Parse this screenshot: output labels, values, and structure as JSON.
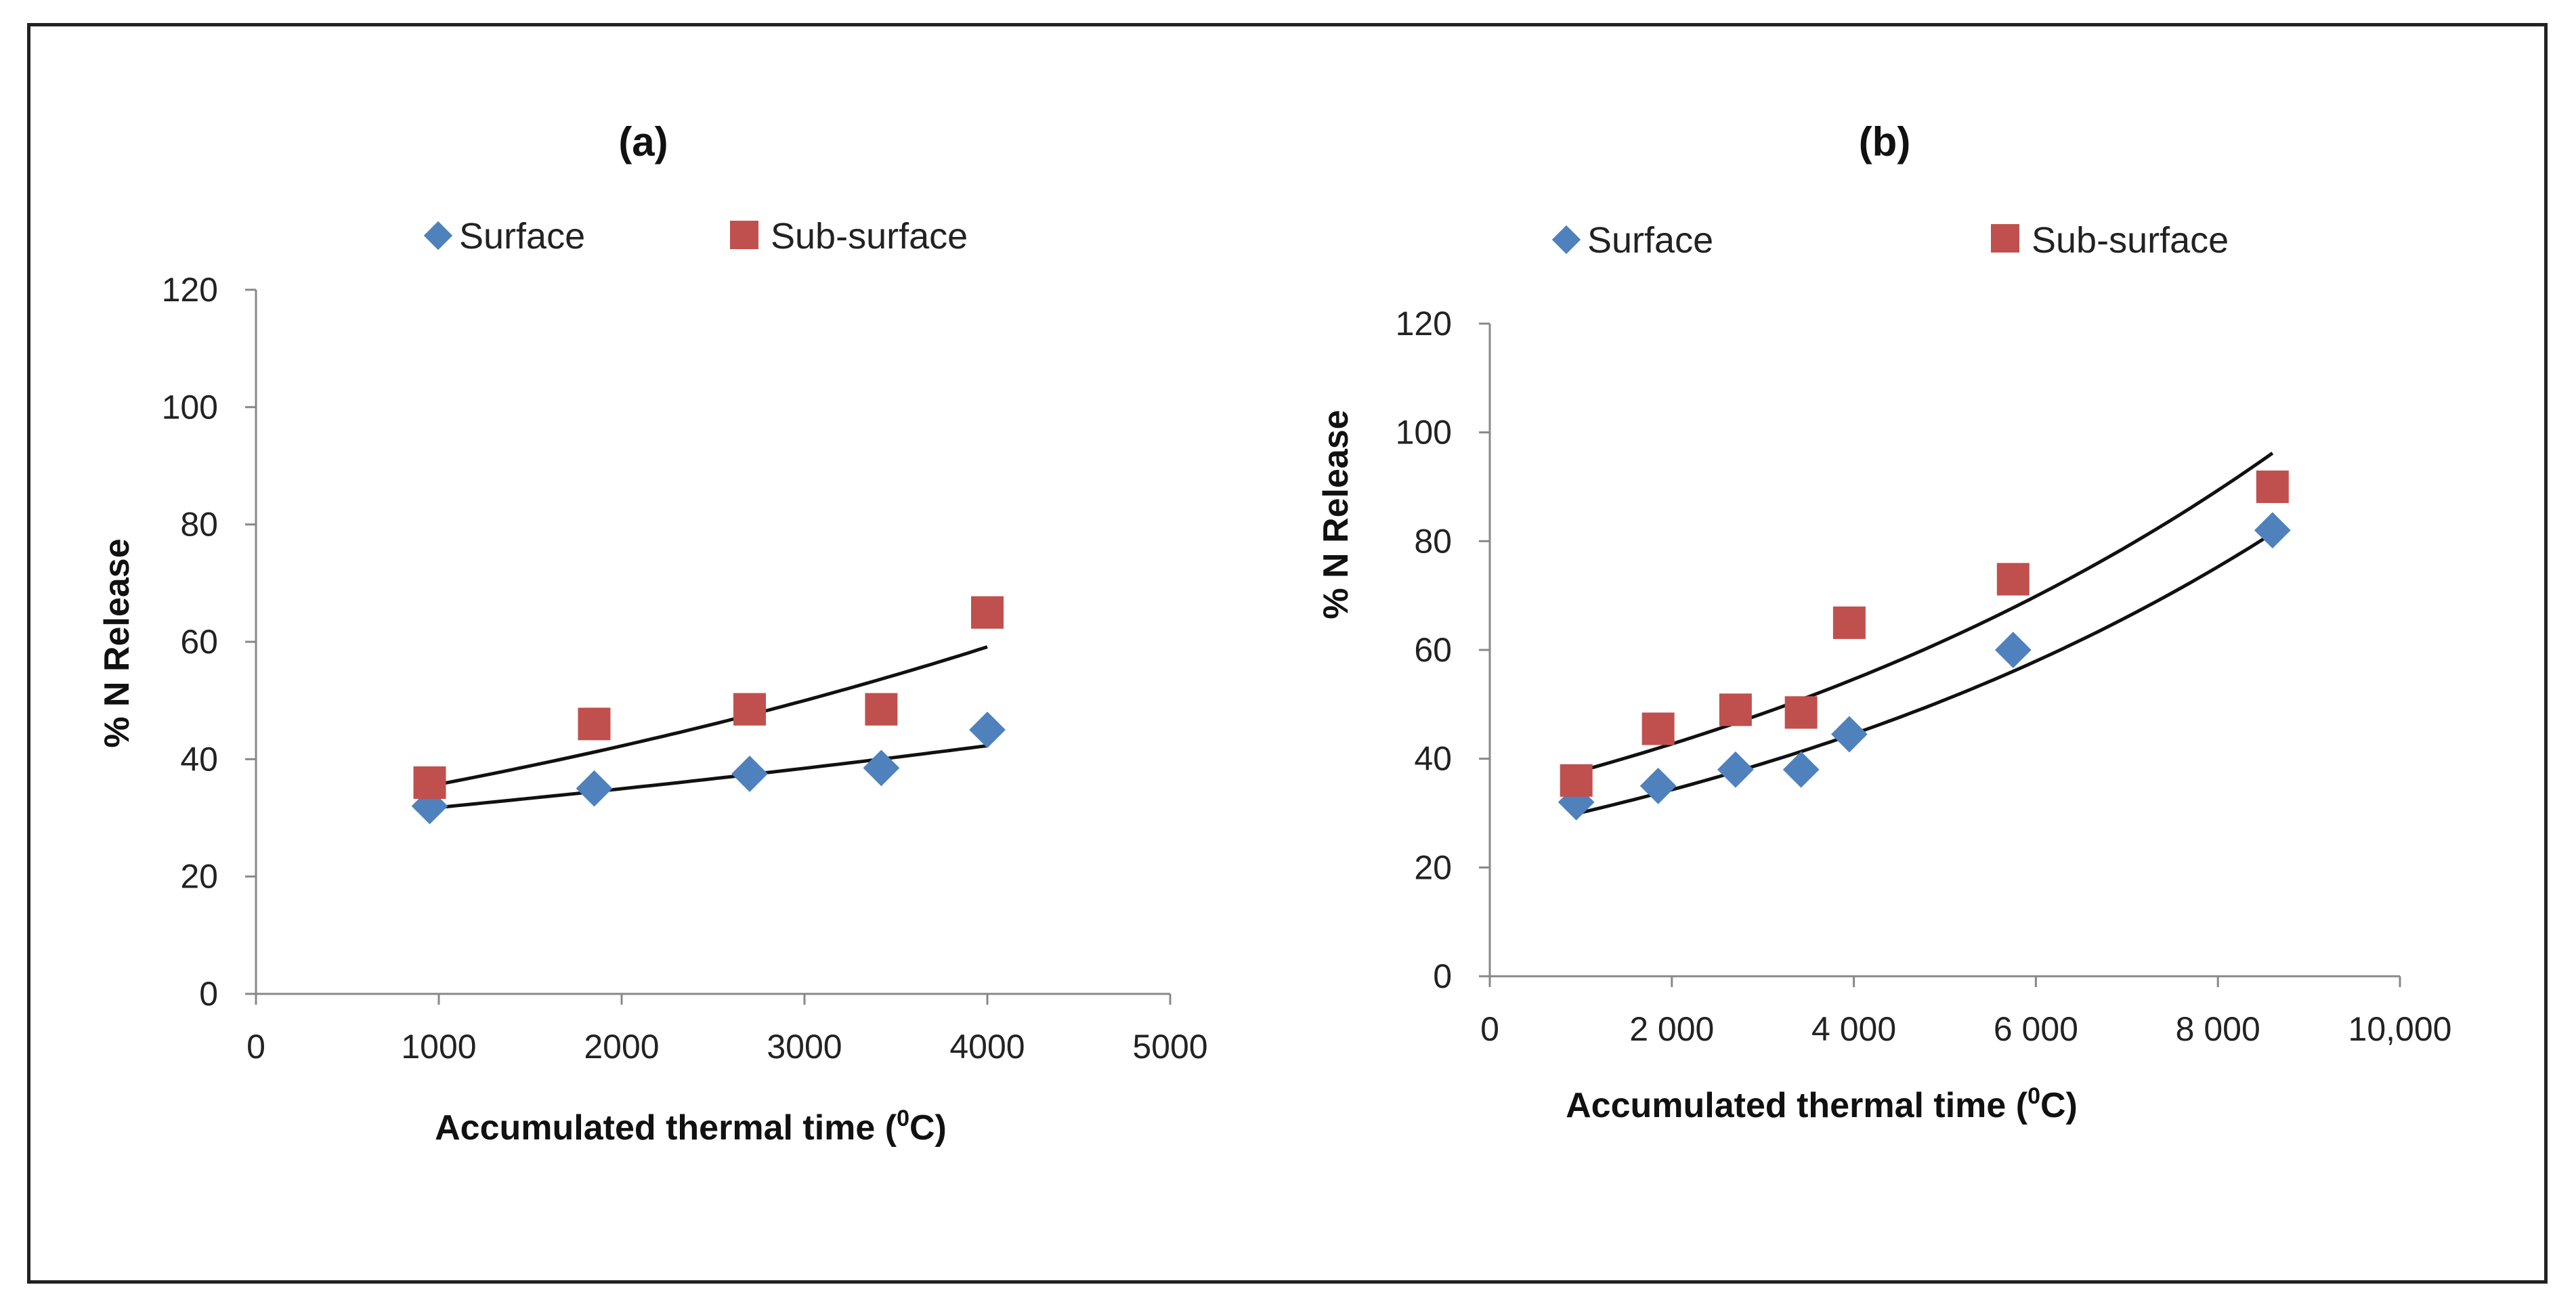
{
  "colors": {
    "surface": "#4F81BD",
    "subsurface": "#C0504D",
    "trend": "#111111"
  },
  "chart_data": [
    {
      "type": "scatter",
      "title": "(a)",
      "xlabel": "Accumulated thermal time (",
      "xlabel_sup": "0",
      "xlabel_tail": "C)",
      "ylabel": "% N Release",
      "xlim": [
        0,
        5000
      ],
      "ylim": [
        0,
        120
      ],
      "xticks": [
        0,
        1000,
        2000,
        3000,
        4000,
        5000
      ],
      "xtick_labels": [
        "0",
        "1000",
        "2000",
        "3000",
        "4000",
        "5000"
      ],
      "yticks": [
        0,
        20,
        40,
        60,
        80,
        100,
        120
      ],
      "ytick_labels": [
        "0",
        "20",
        "40",
        "60",
        "80",
        "100",
        "120"
      ],
      "series": [
        {
          "name": "Surface",
          "marker": "diamond",
          "color_key": "surface",
          "x": [
            950,
            1850,
            2700,
            3420,
            4000
          ],
          "y": [
            32,
            35,
            37.5,
            38.5,
            45
          ],
          "trend": {
            "type": "exponential",
            "x_range": [
              950,
              4000
            ],
            "a": 28.9,
            "b": 9.52e-05
          }
        },
        {
          "name": "Sub-surface",
          "marker": "square",
          "color_key": "subsurface",
          "x": [
            950,
            1850,
            2700,
            3420,
            4000
          ],
          "y": [
            36,
            46,
            48.5,
            48.5,
            65
          ],
          "trend": {
            "type": "exponential",
            "x_range": [
              950,
              4000
            ],
            "a": 30.2,
            "b": 0.000168
          }
        }
      ],
      "legend_position": "top"
    },
    {
      "type": "scatter",
      "title": "(b)",
      "xlabel": "Accumulated thermal time (",
      "xlabel_sup": "0",
      "xlabel_tail": "C)",
      "ylabel": "% N Release",
      "xlim": [
        0,
        10000
      ],
      "ylim": [
        0,
        120
      ],
      "xticks": [
        0,
        2000,
        4000,
        6000,
        8000,
        10000
      ],
      "xtick_labels": [
        "0",
        "2 000",
        "4 000",
        "6 000",
        "8 000",
        "10,000"
      ],
      "yticks": [
        0,
        20,
        40,
        60,
        80,
        100,
        120
      ],
      "ytick_labels": [
        "0",
        "20",
        "40",
        "60",
        "80",
        "100",
        "120"
      ],
      "series": [
        {
          "name": "Surface",
          "marker": "diamond",
          "color_key": "surface",
          "x": [
            950,
            1850,
            2700,
            3420,
            3950,
            5750,
            8600
          ],
          "y": [
            32,
            35,
            38,
            38,
            44.5,
            60,
            82
          ],
          "trend": {
            "type": "exponential",
            "x_range": [
              950,
              8600
            ],
            "a": 26.4,
            "b": 0.000131
          }
        },
        {
          "name": "Sub-surface",
          "marker": "square",
          "color_key": "subsurface",
          "x": [
            950,
            1850,
            2700,
            3420,
            3950,
            5750,
            8600
          ],
          "y": [
            36,
            45.5,
            49,
            48.5,
            65,
            73,
            90
          ],
          "trend": {
            "type": "exponential",
            "x_range": [
              950,
              8600
            ],
            "a": 33.4,
            "b": 0.000123
          }
        }
      ],
      "legend_position": "top"
    }
  ]
}
